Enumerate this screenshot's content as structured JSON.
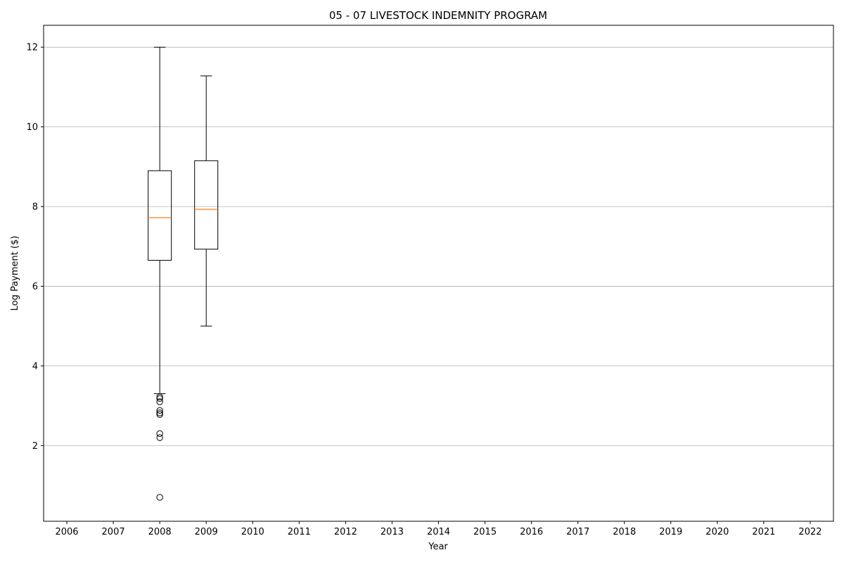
{
  "chart_data": {
    "type": "boxplot",
    "title": "05 - 07 LIVESTOCK INDEMNITY PROGRAM",
    "xlabel": "Year",
    "ylabel": "Log Payment ($)",
    "categories": [
      "2006",
      "2007",
      "2008",
      "2009",
      "2010",
      "2011",
      "2012",
      "2013",
      "2014",
      "2015",
      "2016",
      "2017",
      "2018",
      "2019",
      "2020",
      "2021",
      "2022"
    ],
    "ylim": [
      0.1,
      12.55
    ],
    "yticks": [
      2,
      4,
      6,
      8,
      10,
      12
    ],
    "grid": "y",
    "boxes": [
      {
        "category": "2008",
        "whisker_low": 3.3,
        "q1": 6.65,
        "median": 7.72,
        "q3": 8.9,
        "whisker_high": 12.0,
        "outliers": [
          3.22,
          3.18,
          3.1,
          2.88,
          2.82,
          2.78,
          2.3,
          2.2,
          0.7
        ]
      },
      {
        "category": "2009",
        "whisker_low": 5.0,
        "q1": 6.93,
        "median": 7.93,
        "q3": 9.15,
        "whisker_high": 11.28,
        "outliers": []
      }
    ],
    "colors": {
      "box": "#000000",
      "median": "#ff7f0e",
      "grid": "#b0b0b0"
    }
  }
}
